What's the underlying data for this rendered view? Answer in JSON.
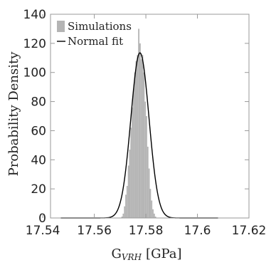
{
  "chart_data": {
    "type": "bar",
    "x_range": [
      17.543,
      17.62
    ],
    "ylim": [
      0,
      140
    ],
    "x_ticks": [
      17.54,
      17.56,
      17.58,
      17.6,
      17.62
    ],
    "x_tick_labels": [
      "17.54",
      "17.56",
      "17.58",
      "17.6",
      "17.62"
    ],
    "y_ticks": [
      0,
      20,
      40,
      60,
      80,
      100,
      120,
      140
    ],
    "y_tick_labels": [
      "0",
      "20",
      "40",
      "60",
      "80",
      "100",
      "120",
      "140"
    ],
    "xlabel_main": "G",
    "xlabel_sub": "VRH",
    "xlabel_unit": "[GPa]",
    "ylabel": "Probability Density",
    "legend": {
      "placement": "top-left",
      "entries": [
        {
          "label": "Simulations",
          "marker": "bar"
        },
        {
          "label": "Normal fit",
          "marker": "line"
        }
      ]
    },
    "grid": false,
    "series": [
      {
        "name": "Simulations",
        "kind": "histogram",
        "color": "#b4b4b4",
        "bin_width": 0.0005,
        "bin_starts": [
          17.5705,
          17.571,
          17.5715,
          17.572,
          17.5725,
          17.573,
          17.5735,
          17.574,
          17.5745,
          17.575,
          17.5755,
          17.576,
          17.5765,
          17.577,
          17.5775,
          17.578,
          17.5785,
          17.579,
          17.5795,
          17.58,
          17.5805,
          17.581,
          17.5815,
          17.582,
          17.5825,
          17.583,
          17.5835
        ],
        "values": [
          1,
          3,
          8,
          16,
          22,
          36,
          47,
          62,
          76,
          89,
          100,
          108,
          112,
          130,
          120,
          109,
          112,
          100,
          80,
          70,
          49,
          34,
          20,
          12,
          6,
          3,
          1
        ]
      },
      {
        "name": "Normal fit",
        "kind": "normal_curve",
        "color": "#000000",
        "mean": 17.5777,
        "peak": 113.5,
        "x_from": 17.547,
        "x_to": 17.608
      }
    ]
  }
}
